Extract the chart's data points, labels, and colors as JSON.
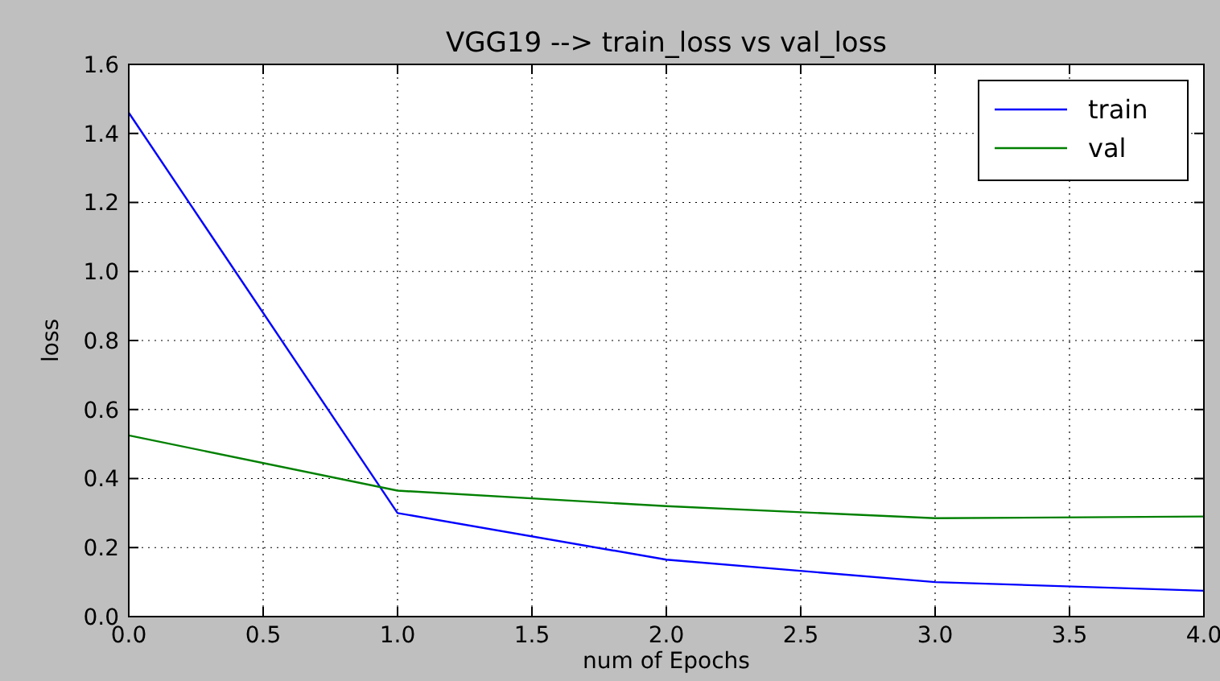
{
  "chart_data": {
    "type": "line",
    "title": "VGG19 --> train_loss vs val_loss",
    "xlabel": "num of Epochs",
    "ylabel": "loss",
    "x": [
      0,
      1,
      2,
      3,
      4
    ],
    "series": [
      {
        "name": "train",
        "color": "#0000ff",
        "values": [
          1.46,
          0.3,
          0.165,
          0.1,
          0.075
        ]
      },
      {
        "name": "val",
        "color": "#008000",
        "values": [
          0.525,
          0.365,
          0.32,
          0.285,
          0.29
        ]
      }
    ],
    "xlim": [
      0,
      4
    ],
    "ylim": [
      0,
      1.6
    ],
    "xticks": [
      {
        "value": 0,
        "label": "0.0"
      },
      {
        "value": 0.5,
        "label": "0.5"
      },
      {
        "value": 1,
        "label": "1.0"
      },
      {
        "value": 1.5,
        "label": "1.5"
      },
      {
        "value": 2,
        "label": "2.0"
      },
      {
        "value": 2.5,
        "label": "2.5"
      },
      {
        "value": 3,
        "label": "3.0"
      },
      {
        "value": 3.5,
        "label": "3.5"
      },
      {
        "value": 4,
        "label": "4.0"
      }
    ],
    "yticks": [
      {
        "value": 0,
        "label": "0.0"
      },
      {
        "value": 0.2,
        "label": "0.2"
      },
      {
        "value": 0.4,
        "label": "0.4"
      },
      {
        "value": 0.6,
        "label": "0.6"
      },
      {
        "value": 0.8,
        "label": "0.8"
      },
      {
        "value": 1,
        "label": "1.0"
      },
      {
        "value": 1.2,
        "label": "1.2"
      },
      {
        "value": 1.4,
        "label": "1.4"
      },
      {
        "value": 1.6,
        "label": "1.6"
      }
    ],
    "grid": true,
    "legend": "top right",
    "marker": "none",
    "line_style": "solid"
  }
}
